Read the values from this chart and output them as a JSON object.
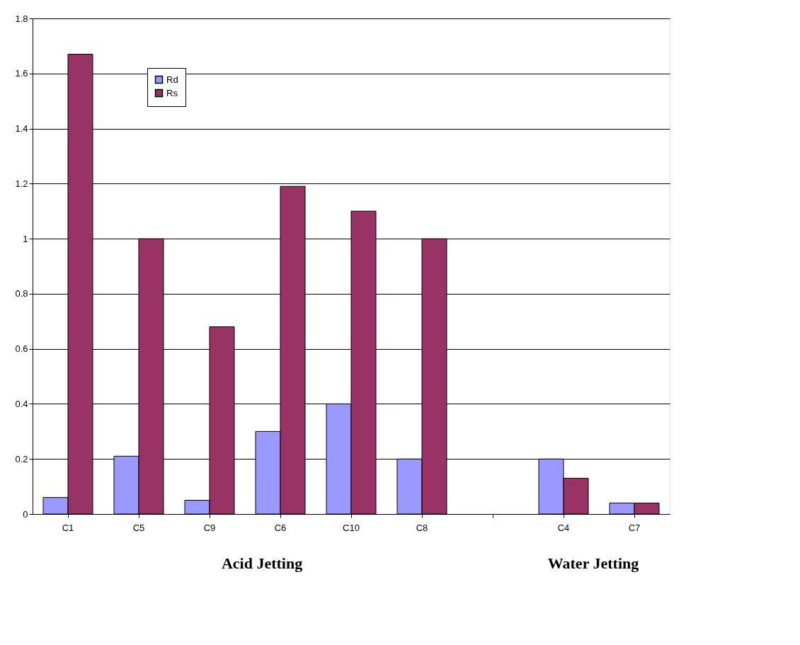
{
  "chart_data": {
    "type": "bar",
    "categories": [
      "C1",
      "C5",
      "C9",
      "C6",
      "C10",
      "C8",
      null,
      "C4",
      "C7"
    ],
    "series": [
      {
        "name": "Rd",
        "color": "#9999ff",
        "values": [
          0.06,
          0.21,
          0.05,
          0.3,
          0.4,
          0.2,
          null,
          0.2,
          0.04
        ]
      },
      {
        "name": "Rs",
        "color": "#993366",
        "values": [
          1.67,
          1.0,
          0.68,
          1.19,
          1.1,
          1.0,
          null,
          0.13,
          0.04
        ]
      }
    ],
    "ylim": [
      0,
      1.8
    ],
    "yticks": [
      0,
      0.2,
      0.4,
      0.6,
      0.8,
      1,
      1.2,
      1.4,
      1.6,
      1.8
    ],
    "grid": "y",
    "legend": "top left",
    "annotations": [
      "Acid Jetting",
      "Water Jetting"
    ]
  }
}
